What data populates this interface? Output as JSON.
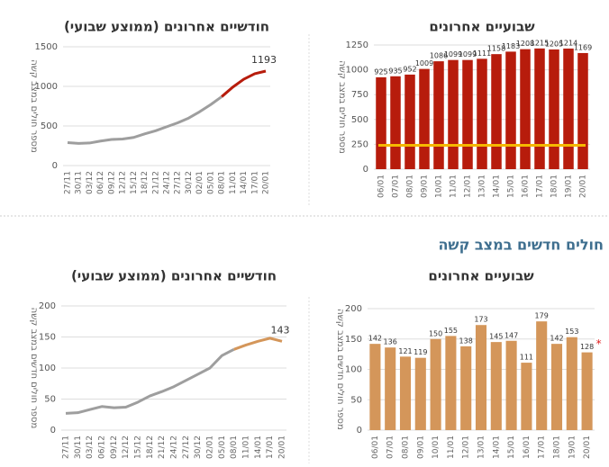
{
  "heading": "חולים חדשים במצב קשה",
  "chart_data": [
    {
      "type": "line",
      "title": "חודשיים אחרונים (ממוצע שבועי)",
      "y_label": "מספר חולים במצב קשה",
      "categories": [
        "27/11",
        "30/11",
        "03/12",
        "06/12",
        "09/12",
        "12/12",
        "15/12",
        "18/12",
        "21/12",
        "24/12",
        "27/12",
        "30/12",
        "02/01",
        "05/01",
        "08/01",
        "11/01",
        "14/01",
        "17/01",
        "20/01"
      ],
      "series": [
        {
          "color": "#9e9e9e",
          "values": [
            290,
            280,
            285,
            310,
            330,
            335,
            355,
            400,
            440,
            490,
            540,
            600,
            680,
            770,
            870,
            null,
            null,
            null,
            null
          ]
        },
        {
          "color": "#b71c0c",
          "values": [
            null,
            null,
            null,
            null,
            null,
            null,
            null,
            null,
            null,
            null,
            null,
            null,
            null,
            null,
            870,
            990,
            1090,
            1160,
            1193
          ]
        }
      ],
      "ylim": [
        0,
        1500
      ],
      "yticks": [
        0,
        500,
        1000,
        1500
      ],
      "grid": true
    },
    {
      "type": "bar",
      "title": "שבועיים אחרונים",
      "y_label": "מספר חולים במצב קשה",
      "categories": [
        "06/01",
        "07/01",
        "08/01",
        "09/01",
        "10/01",
        "11/01",
        "12/01",
        "13/01",
        "14/01",
        "15/01",
        "16/01",
        "17/01",
        "18/01",
        "19/01",
        "20/01"
      ],
      "values": [
        925,
        935,
        952,
        1009,
        1086,
        1099,
        1099,
        1111,
        1158,
        1183,
        1208,
        1215,
        1205,
        1214,
        1169
      ],
      "color": "#b71c0c",
      "threshold": 240,
      "threshold_color": "#f5b800",
      "ylim": [
        0,
        1250
      ],
      "yticks": [
        0,
        250,
        500,
        750,
        1000,
        1250
      ],
      "grid": true
    },
    {
      "type": "line",
      "title": "חודשיים אחרונים (ממוצע שבועי)",
      "y_label": "מספר חולים חדשים במצב קשה",
      "categories": [
        "27/11",
        "30/11",
        "03/12",
        "06/12",
        "09/12",
        "12/12",
        "15/12",
        "18/12",
        "21/12",
        "24/12",
        "27/12",
        "30/12",
        "02/01",
        "05/01",
        "08/01",
        "11/01",
        "14/01",
        "17/01",
        "20/01"
      ],
      "series": [
        {
          "color": "#9e9e9e",
          "values": [
            27,
            28,
            33,
            38,
            36,
            37,
            45,
            55,
            62,
            70,
            80,
            90,
            100,
            120,
            130,
            null,
            null,
            null,
            null
          ]
        },
        {
          "color": "#d4965a",
          "values": [
            null,
            null,
            null,
            null,
            null,
            null,
            null,
            null,
            null,
            null,
            null,
            null,
            null,
            null,
            130,
            137,
            143,
            148,
            143
          ]
        }
      ],
      "ylim": [
        0,
        200
      ],
      "yticks": [
        0,
        50,
        100,
        150,
        200
      ],
      "grid": true
    },
    {
      "type": "bar",
      "title": "שבועיים אחרונים",
      "y_label": "מספר חולים חדשים במצב קשה",
      "categories": [
        "06/01",
        "07/01",
        "08/01",
        "09/01",
        "10/01",
        "11/01",
        "12/01",
        "13/01",
        "14/01",
        "15/01",
        "16/01",
        "17/01",
        "18/01",
        "19/01",
        "20/01"
      ],
      "values": [
        142,
        136,
        121,
        119,
        150,
        155,
        138,
        173,
        145,
        147,
        111,
        179,
        142,
        153,
        128
      ],
      "color": "#d4965a",
      "note_marker": "*",
      "ylim": [
        0,
        200
      ],
      "yticks": [
        0,
        50,
        100,
        150,
        200
      ],
      "grid": true
    }
  ]
}
